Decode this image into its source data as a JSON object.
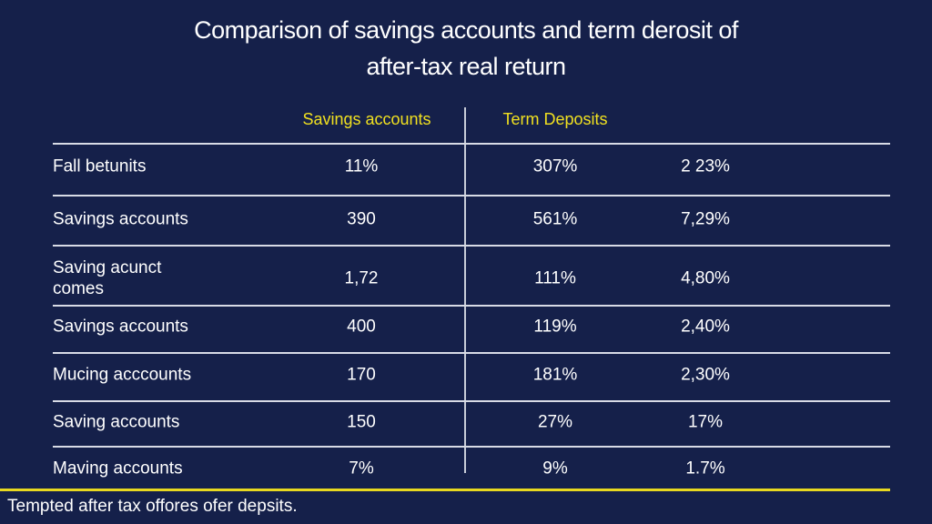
{
  "title": [
    "Comparison of savings accounts and term derosit of",
    "after-tax real return"
  ],
  "table": {
    "headers": [
      "Savings accounts",
      "Term Deposits"
    ],
    "rows": [
      [
        "Fall betunits",
        "11%",
        "307%",
        "2 23%"
      ],
      [
        "Savings accounts",
        "390",
        "561%",
        "7,29%"
      ],
      [
        "Saving acunct\ncomes",
        "1,72",
        "111%",
        "4,80%"
      ],
      [
        "Savings accounts",
        "400",
        "119%",
        "2,40%"
      ],
      [
        "Mucing acccounts",
        "170",
        "181%",
        "2,30%"
      ],
      [
        "Saving accounts",
        "150",
        "27%",
        "17%"
      ],
      [
        "Maving accounts",
        "7%",
        "9%",
        "1.7%"
      ]
    ]
  },
  "footnote": "Tempted after tax offores ofer depsits."
}
